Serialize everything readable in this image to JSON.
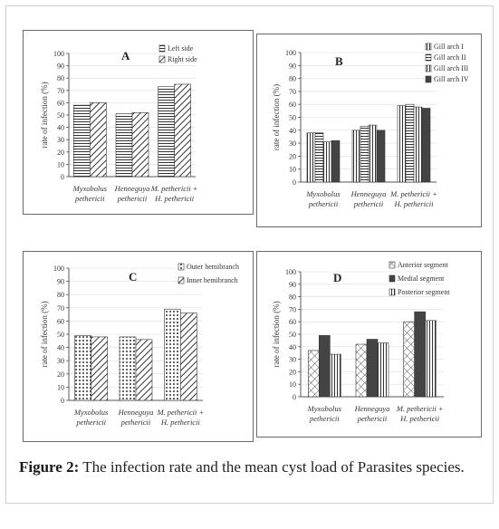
{
  "caption": {
    "label": "Figure 2:",
    "text": "The infection rate and the mean cyst load of Parasites species."
  },
  "colors": {
    "axis": "#555555",
    "grid": "#dddddd",
    "frame": "#6a6a6a",
    "bar_stroke": "#333333"
  },
  "chart_data": [
    {
      "panel": "A",
      "type": "bar",
      "ylabel": "rate of infection (%)",
      "ylim": [
        0,
        100
      ],
      "yticks": [
        0,
        10,
        20,
        30,
        40,
        50,
        60,
        70,
        80,
        90,
        100
      ],
      "categories": [
        [
          "Myxobolus",
          "pethericii"
        ],
        [
          "Henneguya",
          "pethericii"
        ],
        [
          "M. pethericii +",
          "H. pethericii"
        ]
      ],
      "series": [
        {
          "name": "Left side",
          "pattern": "hlines",
          "values": [
            58,
            51,
            73
          ]
        },
        {
          "name": "Right side",
          "pattern": "diag",
          "values": [
            60,
            52,
            75
          ]
        }
      ],
      "legend": "top-right"
    },
    {
      "panel": "B",
      "type": "bar",
      "ylabel": "rate of infection (%)",
      "ylim": [
        0,
        100
      ],
      "yticks": [
        0,
        10,
        20,
        30,
        40,
        50,
        60,
        70,
        80,
        90,
        100
      ],
      "categories": [
        [
          "Myxobolus",
          "pethericii"
        ],
        [
          "Henneguya",
          "pethericii"
        ],
        [
          "M. pethericii +",
          "H. pethericii"
        ]
      ],
      "series": [
        {
          "name": "Gill arch I",
          "pattern": "vlines",
          "values": [
            38,
            40,
            59
          ]
        },
        {
          "name": "Gill arch II",
          "pattern": "hlines",
          "values": [
            38,
            43,
            60
          ]
        },
        {
          "name": "Gill arch III",
          "pattern": "vlines",
          "values": [
            31,
            44,
            58
          ]
        },
        {
          "name": "Gill arch IV",
          "pattern": "solid",
          "values": [
            32,
            40,
            57
          ]
        }
      ],
      "legend": "top-right"
    },
    {
      "panel": "C",
      "type": "bar",
      "ylabel": "rate of infection (%)",
      "ylim": [
        0,
        100
      ],
      "yticks": [
        0,
        10,
        20,
        30,
        40,
        50,
        60,
        70,
        80,
        90,
        100
      ],
      "categories": [
        [
          "Myxobolus",
          "pethericii"
        ],
        [
          "Henneguya",
          "pethericii"
        ],
        [
          "M. pethericii +",
          "H. pethericii"
        ]
      ],
      "series": [
        {
          "name": "Outer hemibranch",
          "pattern": "dots",
          "values": [
            49,
            48,
            69
          ]
        },
        {
          "name": "Inner hemibranch",
          "pattern": "diag",
          "values": [
            48,
            46,
            66
          ]
        }
      ],
      "legend": "top-right"
    },
    {
      "panel": "D",
      "type": "bar",
      "ylabel": "rate of infection (%)",
      "ylim": [
        0,
        100
      ],
      "yticks": [
        0,
        10,
        20,
        30,
        40,
        50,
        60,
        70,
        80,
        90,
        100
      ],
      "categories": [
        [
          "Myxobolus",
          "pethericii"
        ],
        [
          "Henneguya",
          "pethericii"
        ],
        [
          "M. pethericii +",
          "H. pethericii"
        ]
      ],
      "series": [
        {
          "name": "Anterior segment",
          "pattern": "cross",
          "values": [
            37,
            42,
            60
          ]
        },
        {
          "name": "Medial segment",
          "pattern": "solid",
          "values": [
            49,
            46,
            68
          ]
        },
        {
          "name": "Posterior segment",
          "pattern": "vlines",
          "values": [
            34,
            43,
            61
          ]
        }
      ],
      "legend": "top-right"
    }
  ]
}
